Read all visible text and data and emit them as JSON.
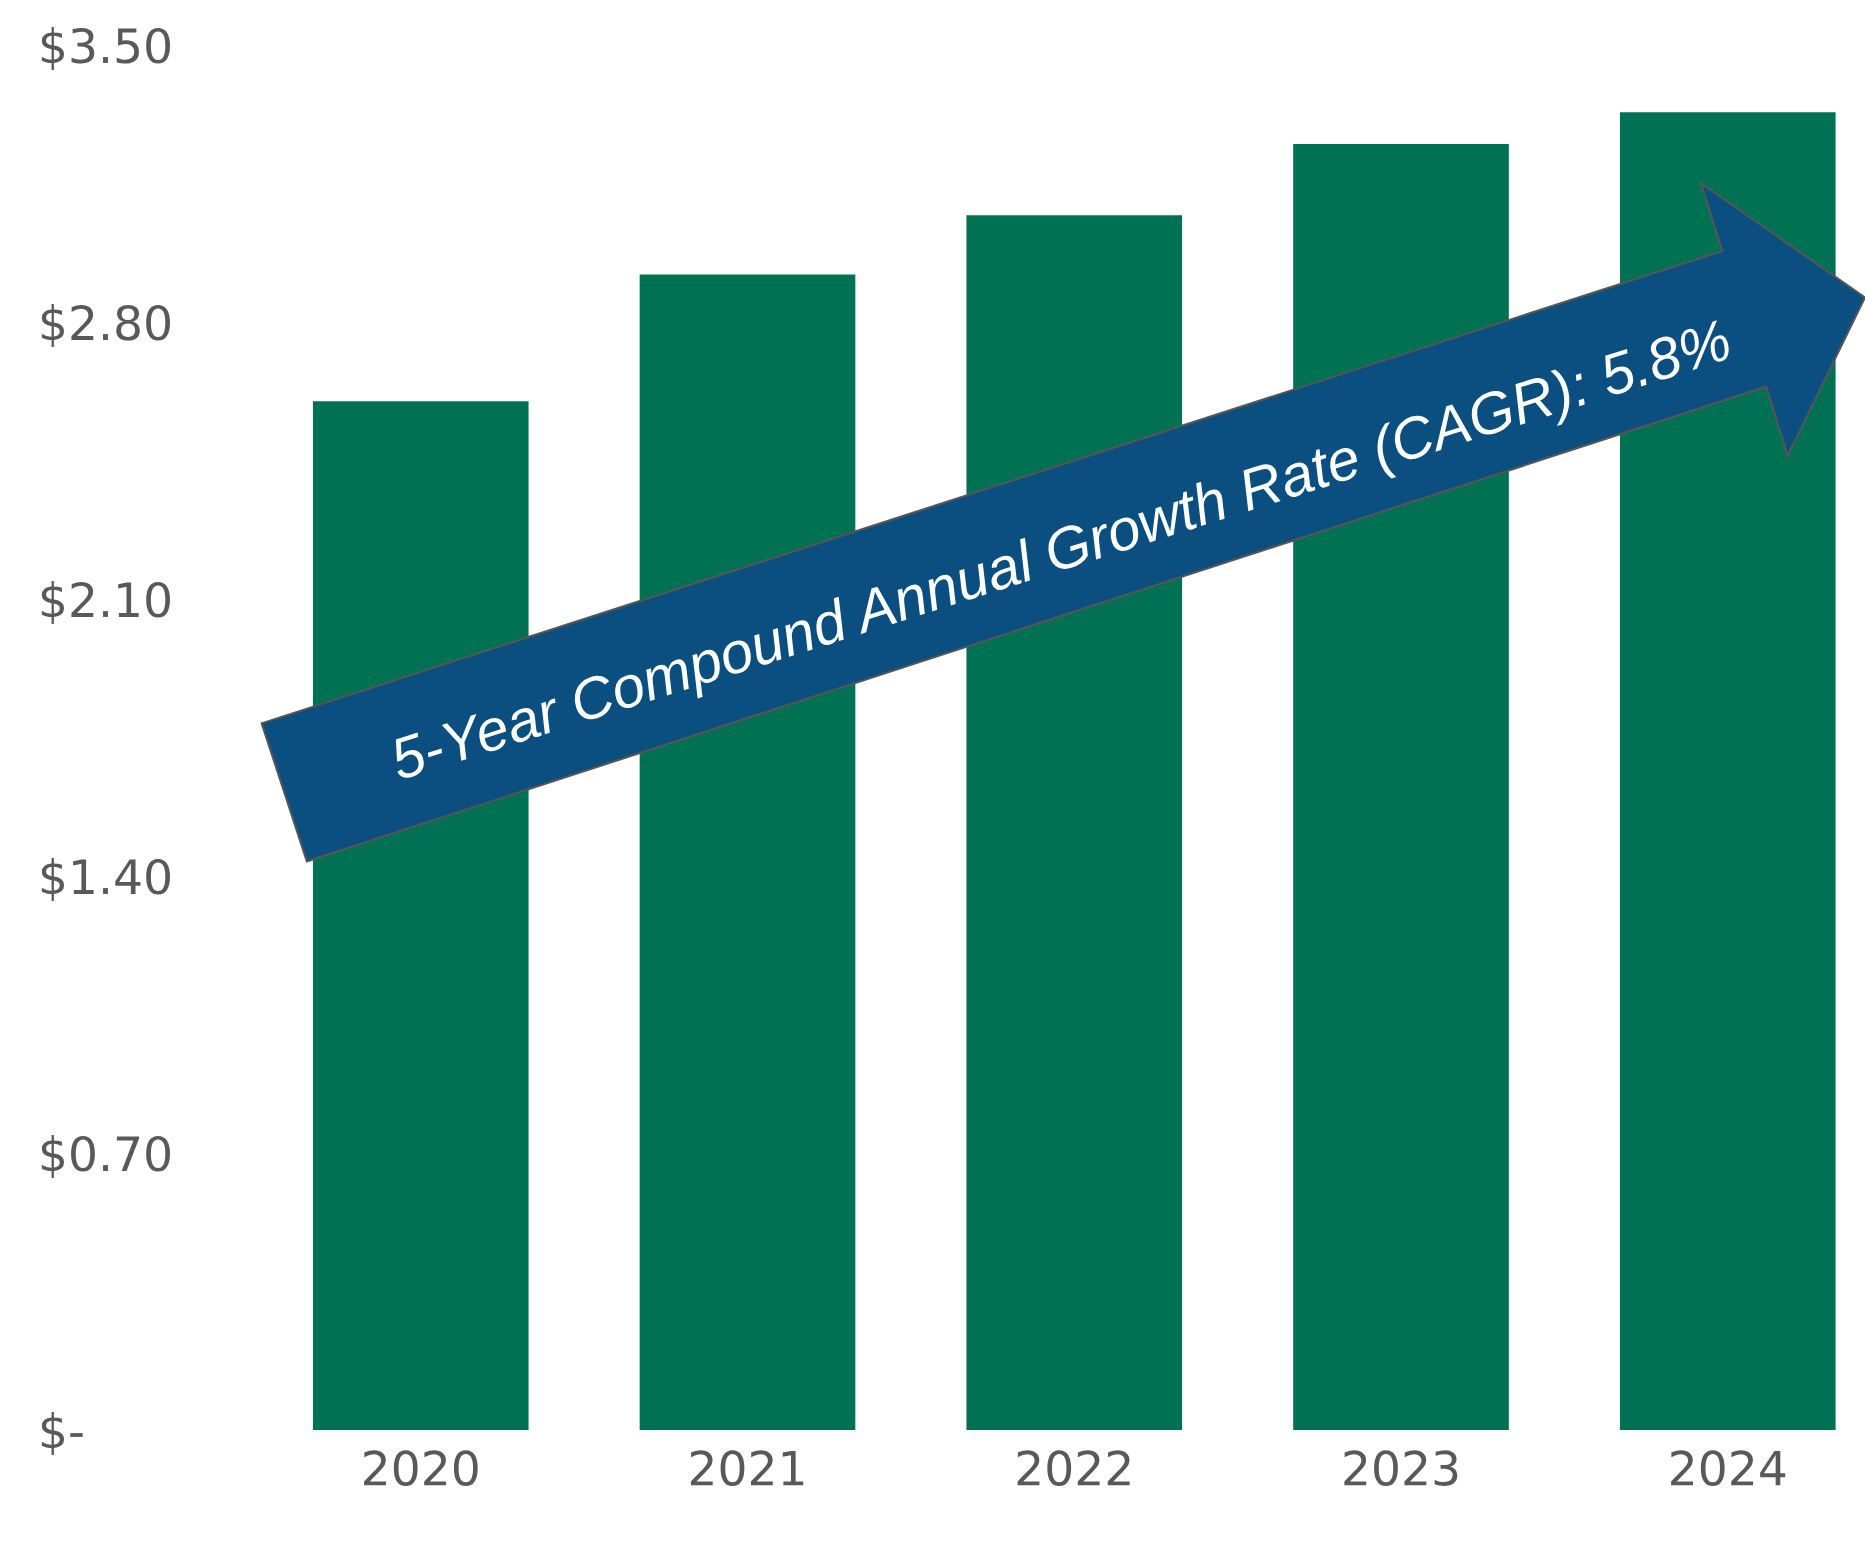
{
  "chart_data": {
    "type": "bar",
    "categories": [
      "2020",
      "2021",
      "2022",
      "2023",
      "2024"
    ],
    "values": [
      2.6,
      2.92,
      3.07,
      3.25,
      3.33
    ],
    "color": "#007153",
    "ylim": [
      0,
      3.5
    ],
    "yticks": [
      {
        "value": 0,
        "label": "$-"
      },
      {
        "value": 0.7,
        "label": "$0.70"
      },
      {
        "value": 1.4,
        "label": "$1.40"
      },
      {
        "value": 2.1,
        "label": "$2.10"
      },
      {
        "value": 2.8,
        "label": "$2.80"
      },
      {
        "value": 3.5,
        "label": "$3.50"
      }
    ],
    "grid": false,
    "legend": false,
    "annotations": [
      "5-Year Compound Annual Growth Rate (CAGR): 5.8%"
    ]
  }
}
